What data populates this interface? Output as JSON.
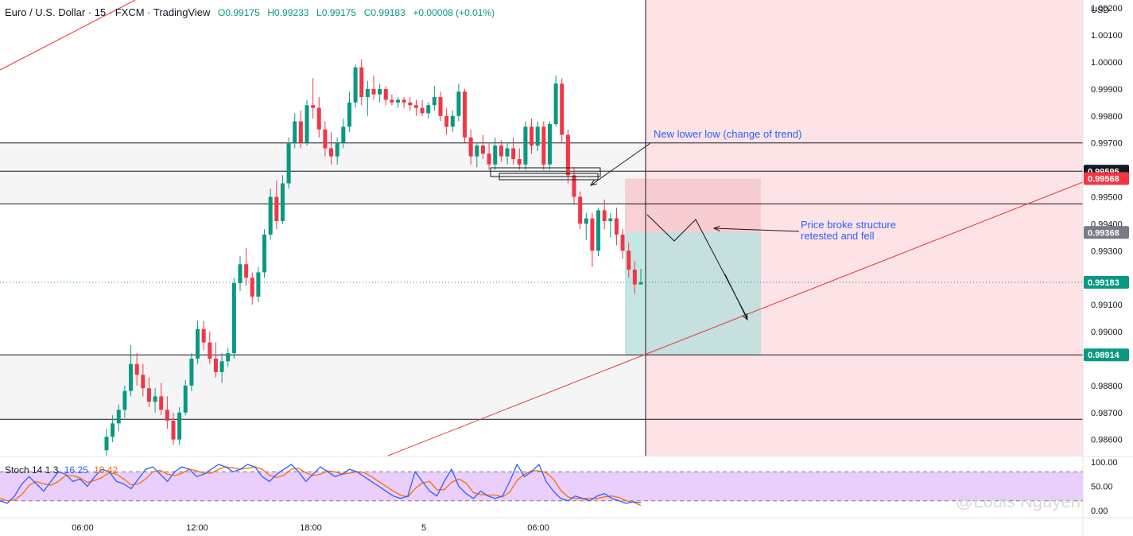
{
  "header": {
    "symbol": "Euro / U.S. Dollar · 15 · FXCM · TradingView",
    "open": "O0.99175",
    "high": "H0.99233",
    "low": "L0.99175",
    "close": "C0.99183",
    "change": "+0.00008 (+0.01%)"
  },
  "indicator": {
    "name": "Stoch 14 1 3",
    "k_value": "16.25",
    "d_value": "10.42",
    "levels": [
      "100.00",
      "50.00",
      "0.00"
    ]
  },
  "watermark": "@Louis Nguyen",
  "annotations": {
    "lower_low": "New lower low (change of trend)",
    "broke_line1": "Price broke structure",
    "broke_line2": "retested and fell"
  },
  "colors": {
    "up": "#089981",
    "down": "#f23645",
    "zone_grey": "#f5f5f5",
    "risk_zone": "#f7c9ce",
    "reward_zone": "#b2dfdb",
    "trendline": "#e53935",
    "stoch_k": "#2962ff",
    "stoch_d": "#ff6d00",
    "stoch_band": "#e8c9fb",
    "annotation_text": "#2962ff"
  },
  "chart_data": {
    "type": "candlestick",
    "currency": "USD",
    "x_ticks": [
      "06:00",
      "12:00",
      "18:00",
      "5",
      "06:00"
    ],
    "y_ticks": [
      "1.00200",
      "1.00100",
      "1.00000",
      "0.99900",
      "0.99800",
      "0.99700",
      "0.99500",
      "0.99400",
      "0.99300",
      "0.99100",
      "0.99000",
      "0.98800",
      "0.98700",
      "0.98600"
    ],
    "ylim": [
      0.9854,
      1.0023
    ],
    "price_labels": [
      {
        "value": "0.99595",
        "style": "dark"
      },
      {
        "value": "0.99568",
        "style": "red"
      },
      {
        "value": "0.99368",
        "style": "grey"
      },
      {
        "value": "0.99183",
        "style": "green"
      },
      {
        "value": "0.98914",
        "style": "green"
      }
    ],
    "horizontal_levels": [
      0.997,
      0.99595,
      0.99474,
      0.98914,
      0.98675
    ],
    "last_price": 0.99183,
    "short_position": {
      "entry": 0.99368,
      "stop": 0.99568,
      "target": 0.98914
    },
    "candles": [
      {
        "o": 0.9856,
        "h": 0.9864,
        "l": 0.9854,
        "c": 0.9861
      },
      {
        "o": 0.9861,
        "h": 0.9869,
        "l": 0.9859,
        "c": 0.9866
      },
      {
        "o": 0.9866,
        "h": 0.9873,
        "l": 0.9863,
        "c": 0.9871
      },
      {
        "o": 0.9871,
        "h": 0.988,
        "l": 0.9868,
        "c": 0.9878
      },
      {
        "o": 0.9878,
        "h": 0.9895,
        "l": 0.9876,
        "c": 0.9888
      },
      {
        "o": 0.9888,
        "h": 0.9892,
        "l": 0.988,
        "c": 0.9884
      },
      {
        "o": 0.9884,
        "h": 0.9888,
        "l": 0.9876,
        "c": 0.9879
      },
      {
        "o": 0.9879,
        "h": 0.9883,
        "l": 0.9872,
        "c": 0.9874
      },
      {
        "o": 0.9874,
        "h": 0.9879,
        "l": 0.987,
        "c": 0.9876
      },
      {
        "o": 0.9876,
        "h": 0.9881,
        "l": 0.9869,
        "c": 0.9871
      },
      {
        "o": 0.9871,
        "h": 0.9876,
        "l": 0.9864,
        "c": 0.9867
      },
      {
        "o": 0.9867,
        "h": 0.987,
        "l": 0.9858,
        "c": 0.986
      },
      {
        "o": 0.986,
        "h": 0.9872,
        "l": 0.9858,
        "c": 0.987
      },
      {
        "o": 0.987,
        "h": 0.9882,
        "l": 0.9869,
        "c": 0.988
      },
      {
        "o": 0.988,
        "h": 0.9892,
        "l": 0.9878,
        "c": 0.989
      },
      {
        "o": 0.989,
        "h": 0.9904,
        "l": 0.9888,
        "c": 0.9901
      },
      {
        "o": 0.9901,
        "h": 0.9904,
        "l": 0.9893,
        "c": 0.9896
      },
      {
        "o": 0.9896,
        "h": 0.99,
        "l": 0.9888,
        "c": 0.989
      },
      {
        "o": 0.989,
        "h": 0.9896,
        "l": 0.9883,
        "c": 0.9885
      },
      {
        "o": 0.9885,
        "h": 0.9892,
        "l": 0.9881,
        "c": 0.9889
      },
      {
        "o": 0.9889,
        "h": 0.9894,
        "l": 0.9887,
        "c": 0.9892
      },
      {
        "o": 0.9892,
        "h": 0.992,
        "l": 0.989,
        "c": 0.9918
      },
      {
        "o": 0.9918,
        "h": 0.9928,
        "l": 0.9915,
        "c": 0.9925
      },
      {
        "o": 0.9925,
        "h": 0.9931,
        "l": 0.9917,
        "c": 0.992
      },
      {
        "o": 0.992,
        "h": 0.9922,
        "l": 0.991,
        "c": 0.9913
      },
      {
        "o": 0.9913,
        "h": 0.9924,
        "l": 0.9911,
        "c": 0.9922
      },
      {
        "o": 0.9922,
        "h": 0.9938,
        "l": 0.992,
        "c": 0.9936
      },
      {
        "o": 0.9936,
        "h": 0.9953,
        "l": 0.9934,
        "c": 0.995
      },
      {
        "o": 0.995,
        "h": 0.9956,
        "l": 0.9938,
        "c": 0.9941
      },
      {
        "o": 0.9941,
        "h": 0.9958,
        "l": 0.994,
        "c": 0.9955
      },
      {
        "o": 0.9955,
        "h": 0.9972,
        "l": 0.9953,
        "c": 0.997
      },
      {
        "o": 0.997,
        "h": 0.9981,
        "l": 0.9968,
        "c": 0.9978
      },
      {
        "o": 0.9978,
        "h": 0.9982,
        "l": 0.9968,
        "c": 0.997
      },
      {
        "o": 0.997,
        "h": 0.9986,
        "l": 0.9969,
        "c": 0.9984
      },
      {
        "o": 0.9984,
        "h": 0.9994,
        "l": 0.9979,
        "c": 0.9983
      },
      {
        "o": 0.9983,
        "h": 0.9987,
        "l": 0.9972,
        "c": 0.9975
      },
      {
        "o": 0.9975,
        "h": 0.9978,
        "l": 0.9965,
        "c": 0.9968
      },
      {
        "o": 0.9968,
        "h": 0.9974,
        "l": 0.9962,
        "c": 0.9965
      },
      {
        "o": 0.9965,
        "h": 0.9972,
        "l": 0.9962,
        "c": 0.997
      },
      {
        "o": 0.997,
        "h": 0.9979,
        "l": 0.9968,
        "c": 0.9976
      },
      {
        "o": 0.9976,
        "h": 0.9989,
        "l": 0.9974,
        "c": 0.9985
      },
      {
        "o": 0.9985,
        "h": 0.9999,
        "l": 0.9983,
        "c": 0.9998
      },
      {
        "o": 0.9998,
        "h": 1.0001,
        "l": 0.9984,
        "c": 0.9987
      },
      {
        "o": 0.9987,
        "h": 0.9993,
        "l": 0.998,
        "c": 0.999
      },
      {
        "o": 0.999,
        "h": 0.9995,
        "l": 0.9986,
        "c": 0.9988
      },
      {
        "o": 0.9988,
        "h": 0.9992,
        "l": 0.9985,
        "c": 0.999
      },
      {
        "o": 0.999,
        "h": 0.9991,
        "l": 0.9984,
        "c": 0.9986
      },
      {
        "o": 0.9986,
        "h": 0.9988,
        "l": 0.9984,
        "c": 0.9985
      },
      {
        "o": 0.9985,
        "h": 0.9987,
        "l": 0.9983,
        "c": 0.9986
      },
      {
        "o": 0.9986,
        "h": 0.9987,
        "l": 0.9983,
        "c": 0.9985
      },
      {
        "o": 0.9985,
        "h": 0.9987,
        "l": 0.9982,
        "c": 0.9984
      },
      {
        "o": 0.9984,
        "h": 0.9986,
        "l": 0.998,
        "c": 0.9983
      },
      {
        "o": 0.9983,
        "h": 0.9986,
        "l": 0.998,
        "c": 0.9981
      },
      {
        "o": 0.9981,
        "h": 0.9985,
        "l": 0.9979,
        "c": 0.9984
      },
      {
        "o": 0.9984,
        "h": 0.9991,
        "l": 0.9982,
        "c": 0.9987
      },
      {
        "o": 0.9987,
        "h": 0.9989,
        "l": 0.9978,
        "c": 0.998
      },
      {
        "o": 0.998,
        "h": 0.9983,
        "l": 0.9973,
        "c": 0.9976
      },
      {
        "o": 0.9976,
        "h": 0.9982,
        "l": 0.9974,
        "c": 0.998
      },
      {
        "o": 0.998,
        "h": 0.9992,
        "l": 0.9978,
        "c": 0.9989
      },
      {
        "o": 0.9989,
        "h": 0.999,
        "l": 0.997,
        "c": 0.9972
      },
      {
        "o": 0.9972,
        "h": 0.9975,
        "l": 0.9962,
        "c": 0.9965
      },
      {
        "o": 0.9965,
        "h": 0.997,
        "l": 0.9961,
        "c": 0.9969
      },
      {
        "o": 0.9969,
        "h": 0.9973,
        "l": 0.9964,
        "c": 0.9966
      },
      {
        "o": 0.9966,
        "h": 0.997,
        "l": 0.996,
        "c": 0.9962
      },
      {
        "o": 0.9962,
        "h": 0.9972,
        "l": 0.996,
        "c": 0.9969
      },
      {
        "o": 0.9969,
        "h": 0.9971,
        "l": 0.9963,
        "c": 0.9965
      },
      {
        "o": 0.9965,
        "h": 0.997,
        "l": 0.9962,
        "c": 0.9968
      },
      {
        "o": 0.9968,
        "h": 0.9972,
        "l": 0.9962,
        "c": 0.9964
      },
      {
        "o": 0.9964,
        "h": 0.9968,
        "l": 0.996,
        "c": 0.9962
      },
      {
        "o": 0.9962,
        "h": 0.9978,
        "l": 0.996,
        "c": 0.9976
      },
      {
        "o": 0.9976,
        "h": 0.9979,
        "l": 0.9966,
        "c": 0.9969
      },
      {
        "o": 0.9969,
        "h": 0.9978,
        "l": 0.9967,
        "c": 0.9976
      },
      {
        "o": 0.9976,
        "h": 0.9978,
        "l": 0.996,
        "c": 0.9962
      },
      {
        "o": 0.9962,
        "h": 0.9978,
        "l": 0.996,
        "c": 0.9977
      },
      {
        "o": 0.9977,
        "h": 0.9995,
        "l": 0.9976,
        "c": 0.9992
      },
      {
        "o": 0.9992,
        "h": 0.9994,
        "l": 0.997,
        "c": 0.9973
      },
      {
        "o": 0.9973,
        "h": 0.9975,
        "l": 0.9955,
        "c": 0.9958
      },
      {
        "o": 0.9958,
        "h": 0.9961,
        "l": 0.9947,
        "c": 0.995
      },
      {
        "o": 0.995,
        "h": 0.9952,
        "l": 0.9938,
        "c": 0.994
      },
      {
        "o": 0.994,
        "h": 0.9944,
        "l": 0.9934,
        "c": 0.9942
      },
      {
        "o": 0.9942,
        "h": 0.9944,
        "l": 0.9924,
        "c": 0.993
      },
      {
        "o": 0.993,
        "h": 0.9946,
        "l": 0.9928,
        "c": 0.9945
      },
      {
        "o": 0.9945,
        "h": 0.9949,
        "l": 0.9938,
        "c": 0.9941
      },
      {
        "o": 0.9941,
        "h": 0.9944,
        "l": 0.9935,
        "c": 0.9942
      },
      {
        "o": 0.9942,
        "h": 0.9946,
        "l": 0.9932,
        "c": 0.9936
      },
      {
        "o": 0.9936,
        "h": 0.9938,
        "l": 0.9927,
        "c": 0.993
      },
      {
        "o": 0.993,
        "h": 0.9933,
        "l": 0.992,
        "c": 0.9923
      },
      {
        "o": 0.9923,
        "h": 0.9926,
        "l": 0.9914,
        "c": 0.99175
      },
      {
        "o": 0.99175,
        "h": 0.99233,
        "l": 0.99175,
        "c": 0.99183
      }
    ],
    "stochastic": {
      "k": [
        20,
        15,
        30,
        55,
        70,
        55,
        40,
        60,
        80,
        75,
        60,
        65,
        50,
        70,
        85,
        80,
        60,
        55,
        45,
        65,
        85,
        90,
        75,
        60,
        80,
        90,
        85,
        70,
        75,
        85,
        95,
        90,
        80,
        85,
        95,
        90,
        70,
        60,
        75,
        85,
        95,
        80,
        60,
        75,
        90,
        80,
        70,
        75,
        85,
        80,
        70,
        60,
        50,
        40,
        30,
        25,
        30,
        80,
        60,
        40,
        30,
        60,
        85,
        50,
        35,
        25,
        40,
        30,
        25,
        30,
        60,
        95,
        70,
        80,
        95,
        60,
        40,
        25,
        20,
        30,
        25,
        20,
        30,
        35,
        25,
        20,
        15,
        18,
        16.25
      ],
      "d": [
        25,
        20,
        22,
        33,
        52,
        60,
        55,
        52,
        60,
        72,
        72,
        67,
        58,
        62,
        68,
        78,
        75,
        65,
        53,
        55,
        65,
        80,
        83,
        75,
        72,
        77,
        85,
        82,
        77,
        77,
        85,
        90,
        88,
        85,
        87,
        90,
        85,
        73,
        68,
        73,
        85,
        87,
        78,
        72,
        75,
        82,
        80,
        75,
        77,
        80,
        78,
        70,
        60,
        50,
        40,
        32,
        28,
        45,
        57,
        60,
        43,
        43,
        58,
        65,
        57,
        37,
        33,
        32,
        32,
        28,
        38,
        62,
        75,
        82,
        82,
        78,
        65,
        42,
        28,
        25,
        25,
        25,
        25,
        28,
        30,
        27,
        20,
        17,
        10.42
      ]
    }
  }
}
